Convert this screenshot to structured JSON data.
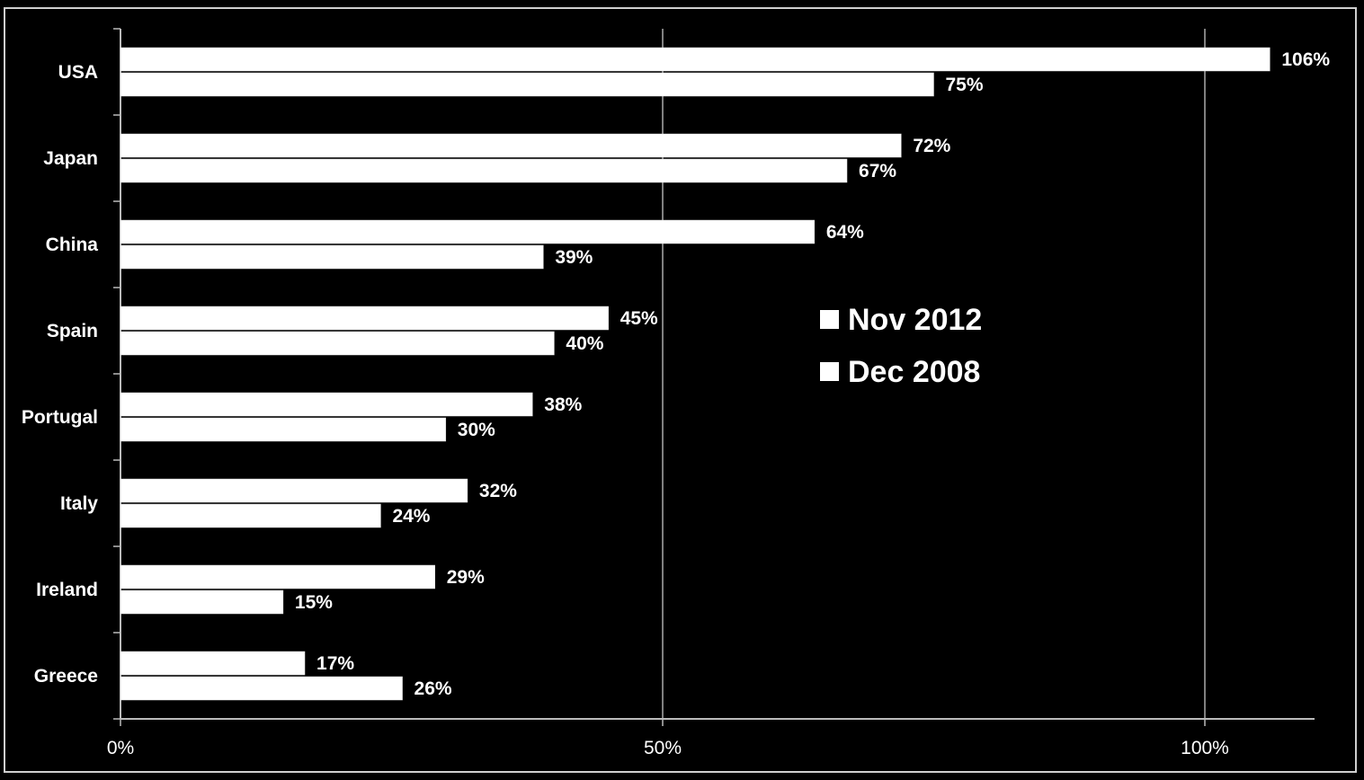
{
  "chart_data": {
    "type": "bar",
    "orientation": "horizontal",
    "categories": [
      "USA",
      "Japan",
      "China",
      "Spain",
      "Portugal",
      "Italy",
      "Ireland",
      "Greece"
    ],
    "series": [
      {
        "name": "Nov 2012",
        "values": [
          106,
          72,
          64,
          45,
          38,
          32,
          29,
          17
        ],
        "labels": [
          "106%",
          "72%",
          "64%",
          "45%",
          "38%",
          "32%",
          "29%",
          "17%"
        ]
      },
      {
        "name": "Dec 2008",
        "values": [
          75,
          67,
          39,
          40,
          30,
          24,
          15,
          26
        ],
        "labels": [
          "75%",
          "67%",
          "39%",
          "40%",
          "30%",
          "24%",
          "15%",
          "26%"
        ]
      }
    ],
    "xlim": [
      0,
      110
    ],
    "xticks": [
      0,
      50,
      100
    ],
    "xtick_labels": [
      "0%",
      "50%",
      "100%"
    ],
    "grid": true,
    "legend_position": "center-right",
    "colors": {
      "background": "#000000",
      "bar": "#ffffff",
      "grid": "#ffffff",
      "text": "#ffffff"
    }
  }
}
